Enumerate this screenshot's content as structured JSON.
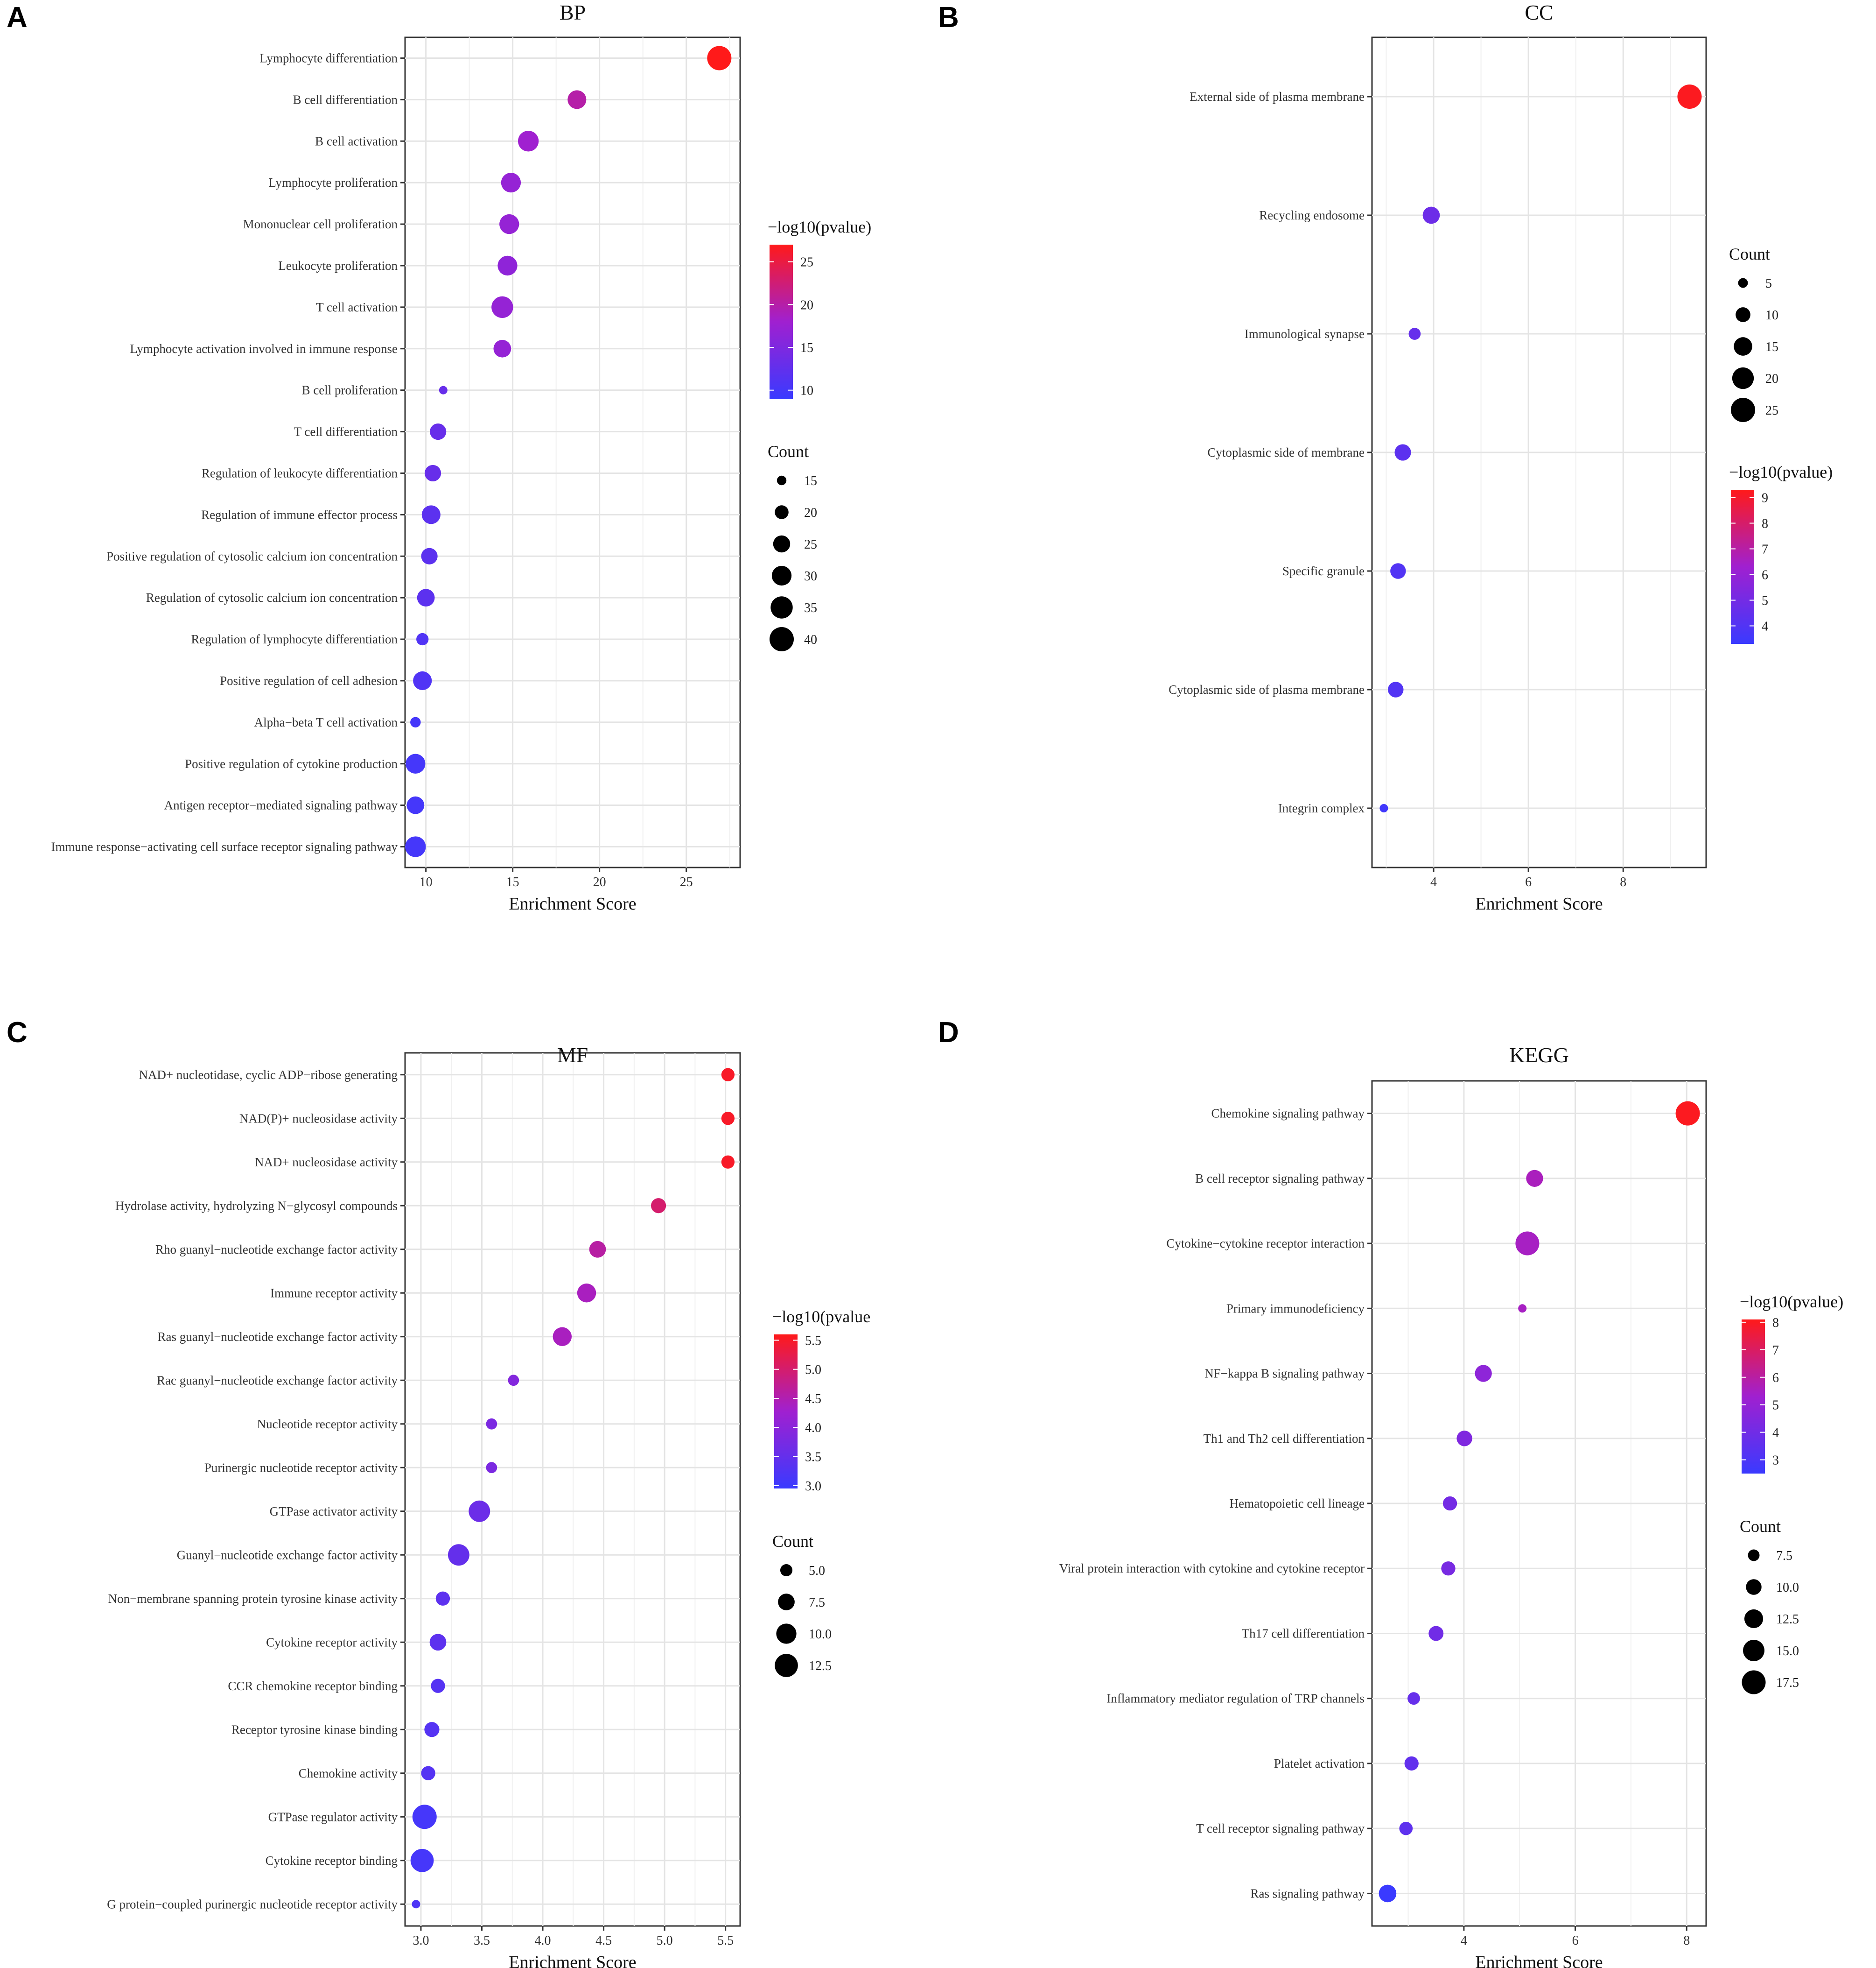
{
  "chart_data": [
    {
      "panel": "A",
      "type": "scatter",
      "title": "BP",
      "xlabel": "Enrichment Score",
      "xlim": [
        8.8,
        28.1
      ],
      "xticks": [
        10,
        15,
        20,
        25
      ],
      "categories": [
        "Lymphocyte differentiation",
        "B cell differentiation",
        "B cell activation",
        "Lymphocyte proliferation",
        "Mononuclear cell proliferation",
        "Leukocyte proliferation",
        "T cell activation",
        "Lymphocyte activation involved in immune response",
        "B cell proliferation",
        "T cell differentiation",
        "Regulation of leukocyte differentiation",
        "Regulation of immune effector process",
        "Positive regulation of cytosolic calcium ion concentration",
        "Regulation of cytosolic calcium ion concentration",
        "Regulation of lymphocyte differentiation",
        "Positive regulation of cell adhesion",
        "Alpha−beta T cell activation",
        "Positive regulation of cytokine production",
        "Antigen receptor−mediated signaling pathway",
        "Immune response−activating cell surface receptor signaling pathway"
      ],
      "enrichment_score": [
        26.9,
        18.7,
        15.9,
        14.9,
        14.8,
        14.7,
        14.4,
        14.4,
        11.0,
        10.7,
        10.4,
        10.3,
        10.2,
        10.0,
        9.8,
        9.8,
        9.4,
        9.4,
        9.4,
        9.4
      ],
      "count": [
        40,
        28,
        32,
        30,
        30,
        30,
        34,
        26,
        14,
        24,
        24,
        28,
        24,
        26,
        18,
        28,
        16,
        30,
        26,
        32
      ],
      "neg_log10_pvalue": [
        27,
        20,
        18,
        17,
        17,
        16.5,
        17,
        17,
        13,
        13,
        13,
        12,
        12,
        12,
        11,
        11,
        10,
        10,
        10,
        10
      ],
      "color_legend": {
        "title": "−log10(pvalue)",
        "ticks": [
          10,
          15,
          20,
          25
        ],
        "range": [
          9,
          27
        ]
      },
      "size_legend": {
        "title": "Count",
        "values": [
          15,
          20,
          25,
          30,
          35,
          40
        ],
        "range": [
          14,
          40
        ]
      }
    },
    {
      "panel": "B",
      "type": "scatter",
      "title": "CC",
      "xlabel": "Enrichment Score",
      "xlim": [
        2.7,
        9.75
      ],
      "xticks": [
        4,
        6,
        8
      ],
      "categories": [
        "External side of plasma membrane",
        "Recycling endosome",
        "Immunological synapse",
        "Cytoplasmic side of membrane",
        "Specific granule",
        "Cytoplasmic side of plasma membrane",
        "Integrin complex"
      ],
      "enrichment_score": [
        9.4,
        3.95,
        3.6,
        3.35,
        3.25,
        3.2,
        2.95
      ],
      "count": [
        25,
        13,
        7,
        12,
        11,
        11,
        4
      ],
      "neg_log10_pvalue": [
        9.2,
        4.8,
        4.6,
        4.3,
        4.0,
        4.0,
        3.5
      ],
      "color_legend": {
        "title": "−log10(pvalue)",
        "ticks": [
          4,
          5,
          6,
          7,
          8,
          9
        ],
        "range": [
          3.3,
          9.3
        ]
      },
      "size_legend": {
        "title": "Count",
        "values": [
          5,
          10,
          15,
          20,
          25
        ],
        "range": [
          4,
          25
        ]
      }
    },
    {
      "panel": "C",
      "type": "scatter",
      "title": "MF",
      "xlabel": "Enrichment Score",
      "xlim": [
        2.87,
        5.62
      ],
      "xticks": [
        3.0,
        3.5,
        4.0,
        4.5,
        5.0,
        5.5
      ],
      "xticklabels": [
        "3.0",
        "3.5",
        "4.0",
        "4.5",
        "5.0",
        "5.5"
      ],
      "categories": [
        "NAD+ nucleotidase, cyclic ADP−ribose generating",
        "NAD(P)+ nucleosidase activity",
        "NAD+ nucleosidase activity",
        "Hydrolase activity, hydrolyzing N−glycosyl compounds",
        "Rho guanyl−nucleotide exchange factor activity",
        "Immune receptor activity",
        "Ras guanyl−nucleotide exchange factor activity",
        "Rac guanyl−nucleotide exchange factor activity",
        "Nucleotide receptor activity",
        "Purinergic nucleotide receptor activity",
        "GTPase activator activity",
        "Guanyl−nucleotide exchange factor activity",
        "Non−membrane spanning protein tyrosine kinase activity",
        "Cytokine receptor activity",
        "CCR chemokine receptor binding",
        "Receptor tyrosine kinase binding",
        "Chemokine activity",
        "GTPase regulator activity",
        "Cytokine receptor binding",
        "G protein−coupled purinergic nucleotide receptor activity"
      ],
      "enrichment_score": [
        5.52,
        5.52,
        5.52,
        4.95,
        4.45,
        4.36,
        4.16,
        3.76,
        3.58,
        3.58,
        3.48,
        3.31,
        3.18,
        3.14,
        3.14,
        3.09,
        3.06,
        3.03,
        3.01,
        2.96
      ],
      "count": [
        5.5,
        5.5,
        5.5,
        6.5,
        7.5,
        9,
        9,
        4.5,
        4.5,
        4.5,
        11,
        11,
        6,
        7.5,
        6,
        6.5,
        6,
        13.5,
        12.5,
        3.5
      ],
      "neg_log10_pvalue": [
        5.5,
        5.5,
        5.5,
        5.0,
        4.6,
        4.4,
        4.4,
        3.9,
        3.8,
        3.8,
        3.6,
        3.5,
        3.4,
        3.4,
        3.3,
        3.3,
        3.3,
        3.1,
        3.1,
        3.2
      ],
      "color_legend": {
        "title": "−log10(pvalue",
        "ticks": [
          3.0,
          3.5,
          4.0,
          4.5,
          5.0,
          5.5
        ],
        "ticklabels": [
          "3.0",
          "3.5",
          "4.0",
          "4.5",
          "5.0",
          "5.5"
        ],
        "range": [
          2.95,
          5.6
        ]
      },
      "size_legend": {
        "title": "Count",
        "values": [
          5.0,
          7.5,
          10.0,
          12.5
        ],
        "labels": [
          "5.0",
          "7.5",
          "10.0",
          "12.5"
        ],
        "range": [
          3.5,
          13.5
        ]
      }
    },
    {
      "panel": "D",
      "type": "scatter",
      "title": "KEGG",
      "xlabel": "Enrichment Score",
      "xlim": [
        2.35,
        8.35
      ],
      "xticks": [
        4,
        6,
        8
      ],
      "categories": [
        "Chemokine signaling pathway",
        "B cell receptor signaling pathway",
        "Cytokine−cytokine receptor interaction",
        "Primary immunodeficiency",
        "NF−kappa B signaling pathway",
        "Th1 and Th2 cell differentiation",
        "Hematopoietic cell lineage",
        "Viral protein interaction with cytokine and cytokine receptor",
        "Th17 cell differentiation",
        "Inflammatory mediator regulation of TRP channels",
        "Platelet activation",
        "T cell receptor signaling pathway",
        "Ras signaling pathway"
      ],
      "enrichment_score": [
        8.02,
        5.27,
        5.14,
        5.05,
        4.35,
        4.01,
        3.75,
        3.72,
        3.5,
        3.1,
        3.06,
        2.96,
        2.63
      ],
      "count": [
        18,
        11,
        17.5,
        6,
        11,
        10,
        9,
        9,
        9.5,
        8,
        9,
        8.5,
        11.5
      ],
      "neg_log10_pvalue": [
        8,
        5.6,
        5.5,
        5.5,
        4.8,
        4.4,
        4.1,
        4.2,
        4.0,
        3.7,
        3.6,
        3.5,
        2.5
      ],
      "color_legend": {
        "title": "−log10(pvalue)",
        "ticks": [
          3,
          4,
          5,
          6,
          7,
          8
        ],
        "range": [
          2.5,
          8.1
        ]
      },
      "size_legend": {
        "title": "Count",
        "values": [
          7.5,
          10.0,
          12.5,
          15.0,
          17.5
        ],
        "labels": [
          "7.5",
          "10.0",
          "12.5",
          "15.0",
          "17.5"
        ],
        "range": [
          6,
          18
        ]
      }
    }
  ]
}
